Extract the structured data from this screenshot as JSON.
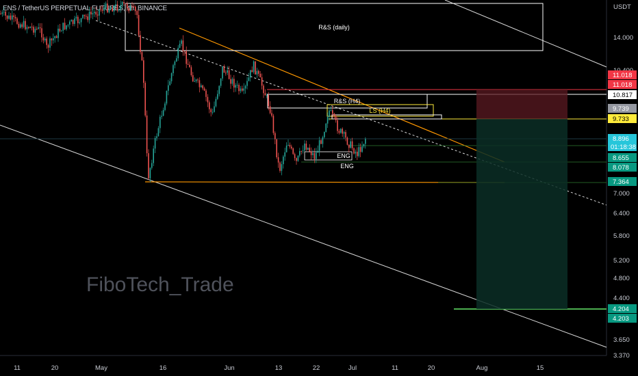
{
  "header": {
    "symbol_title": "ENS / TetherUS PERPETUAL FUTURES, 4h, BINANCE",
    "currency": "USDT"
  },
  "watermark": "FiboTech_Trade",
  "chart_data": {
    "type": "candlestick",
    "price_scale": {
      "ticks": [
        "14.000",
        "10.400",
        "7.000",
        "6.400",
        "5.800",
        "5.200",
        "4.800",
        "4.400",
        "3.650",
        "3.370"
      ],
      "scale": "log"
    },
    "x_ticks": [
      "11",
      "20",
      "May",
      "16",
      "Jun",
      "13",
      "22",
      "Jul",
      "11",
      "20",
      "Aug",
      "15"
    ],
    "price_tags": [
      {
        "value": "11.018",
        "color": "#f23645"
      },
      {
        "value": "11.018",
        "color": "#f23645"
      },
      {
        "value": "10.817",
        "color": "#ffffff"
      },
      {
        "value": "9.739",
        "color": "#9598a1"
      },
      {
        "value": "9.733",
        "color": "#ffeb3b"
      },
      {
        "value": "8.896",
        "color": "#26c6da"
      },
      {
        "value": "01:18:38",
        "color": "#26c6da"
      },
      {
        "value": "8.655",
        "color": "#089981"
      },
      {
        "value": "8.078",
        "color": "#089981"
      },
      {
        "value": "7.364",
        "color": "#089981"
      },
      {
        "value": "4.204",
        "color": "#089981"
      },
      {
        "value": "4.203",
        "color": "#089981"
      }
    ],
    "zones": [
      {
        "label": "R&S (daily)",
        "color": "#ffffff"
      },
      {
        "label": "R&S (H4)",
        "color": "#ffffff"
      },
      {
        "label": "LS (H4)",
        "color": "#ffeb3b"
      },
      {
        "label": "ENG",
        "color": "#ffffff"
      },
      {
        "label": "ENG",
        "color": "#ffffff"
      }
    ],
    "position": {
      "type": "short",
      "entry": 9.733,
      "stop": 11.018,
      "target": 4.204
    }
  }
}
